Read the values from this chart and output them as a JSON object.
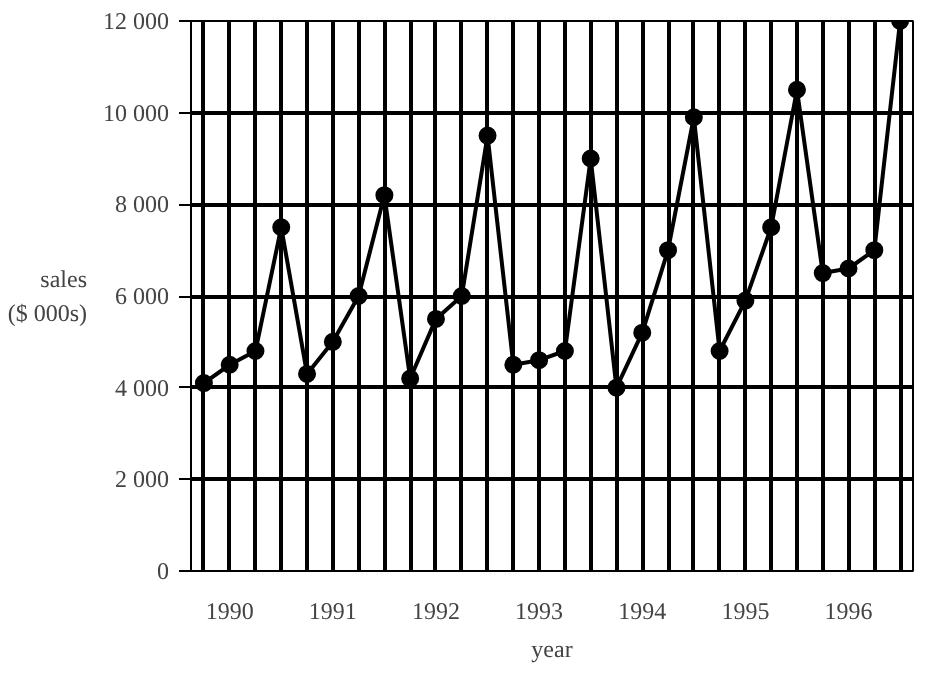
{
  "chart_data": {
    "type": "line",
    "xlabel": "year",
    "ylabel": "sales\n($ 000s)",
    "x": [
      1990,
      1990.25,
      1990.5,
      1990.75,
      1991,
      1991.25,
      1991.5,
      1991.75,
      1992,
      1992.25,
      1992.5,
      1992.75,
      1993,
      1993.25,
      1993.5,
      1993.75,
      1994,
      1994.25,
      1994.5,
      1994.75,
      1995,
      1995.25,
      1995.5,
      1995.75,
      1996,
      1996.25,
      1996.5,
      1996.75
    ],
    "series": [
      {
        "color": "#000000",
        "values": [
          4100,
          4500,
          4800,
          7500,
          4300,
          5000,
          6000,
          8200,
          4200,
          5500,
          6000,
          9500,
          4500,
          4600,
          4800,
          9000,
          4000,
          5200,
          7000,
          9900,
          4800,
          5900,
          7500,
          10500,
          6500,
          6600,
          7000,
          12000
        ]
      }
    ],
    "xlim": [
      1989.875,
      1996.875
    ],
    "ylim": [
      0,
      12000
    ],
    "xticks": [
      {
        "value": 1990,
        "label": null
      },
      {
        "value": 1990.25,
        "label": "1990"
      },
      {
        "value": 1990.5,
        "label": null
      },
      {
        "value": 1990.75,
        "label": null
      },
      {
        "value": 1991,
        "label": null
      },
      {
        "value": 1991.25,
        "label": "1991"
      },
      {
        "value": 1991.5,
        "label": null
      },
      {
        "value": 1991.75,
        "label": null
      },
      {
        "value": 1992,
        "label": null
      },
      {
        "value": 1992.25,
        "label": "1992"
      },
      {
        "value": 1992.5,
        "label": null
      },
      {
        "value": 1992.75,
        "label": null
      },
      {
        "value": 1993,
        "label": null
      },
      {
        "value": 1993.25,
        "label": "1993"
      },
      {
        "value": 1993.5,
        "label": null
      },
      {
        "value": 1993.75,
        "label": null
      },
      {
        "value": 1994,
        "label": null
      },
      {
        "value": 1994.25,
        "label": "1994"
      },
      {
        "value": 1994.5,
        "label": null
      },
      {
        "value": 1994.75,
        "label": null
      },
      {
        "value": 1995,
        "label": null
      },
      {
        "value": 1995.25,
        "label": "1995"
      },
      {
        "value": 1995.5,
        "label": null
      },
      {
        "value": 1995.75,
        "label": null
      },
      {
        "value": 1996,
        "label": null
      },
      {
        "value": 1996.25,
        "label": "1996"
      },
      {
        "value": 1996.5,
        "label": null
      },
      {
        "value": 1996.75,
        "label": null
      }
    ],
    "yticks": [
      {
        "value": 0,
        "label": "0"
      },
      {
        "value": 2000,
        "label": "2 000"
      },
      {
        "value": 4000,
        "label": "4 000"
      },
      {
        "value": 6000,
        "label": "6 000"
      },
      {
        "value": 8000,
        "label": "8 000"
      },
      {
        "value": 10000,
        "label": "10 000"
      },
      {
        "value": 12000,
        "label": "12 000"
      }
    ],
    "grid": true,
    "marker": "circle",
    "line_style": "solid"
  }
}
